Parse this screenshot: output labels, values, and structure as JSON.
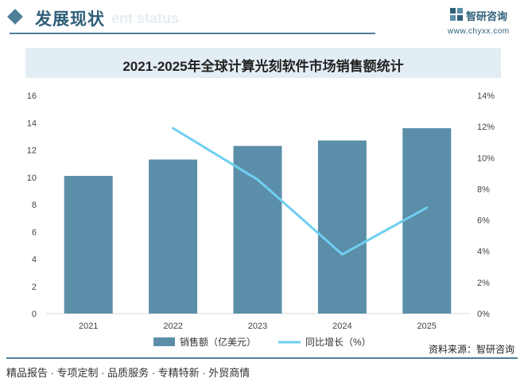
{
  "header": {
    "title": "发展现状",
    "subtitle_en": "ent status",
    "brand_name": "智研咨询",
    "brand_url": "www.chyxx.com"
  },
  "source": "资料来源：智研咨询",
  "footer": "精品报告 · 专项定制 · 品质服务 · 专精特新 · 外贸商情",
  "colors": {
    "bar": "#5b8ea8",
    "line": "#6fcff2",
    "accent": "#4e7f99"
  },
  "chart_data": {
    "type": "bar",
    "title": "2021-2025年全球计算光刻软件市场销售额统计",
    "categories": [
      "2021",
      "2022",
      "2023",
      "2024",
      "2025"
    ],
    "y_left": {
      "ticks": [
        "0",
        "2",
        "4",
        "6",
        "8",
        "10",
        "12",
        "14",
        "16"
      ],
      "min": 0,
      "max": 16
    },
    "y_right": {
      "ticks": [
        "0%",
        "2%",
        "4%",
        "6%",
        "8%",
        "10%",
        "12%",
        "14%"
      ],
      "min": 0,
      "max": 14
    },
    "series": [
      {
        "name": "销售额（亿美元）",
        "type": "bar",
        "axis": "left",
        "values": [
          10.1,
          11.3,
          12.3,
          12.7,
          13.6
        ]
      },
      {
        "name": "同比增长（%）",
        "type": "line",
        "axis": "right",
        "values": [
          null,
          11.9,
          8.6,
          3.8,
          6.8
        ]
      }
    ],
    "legend": "bottom-center",
    "grid": false
  }
}
